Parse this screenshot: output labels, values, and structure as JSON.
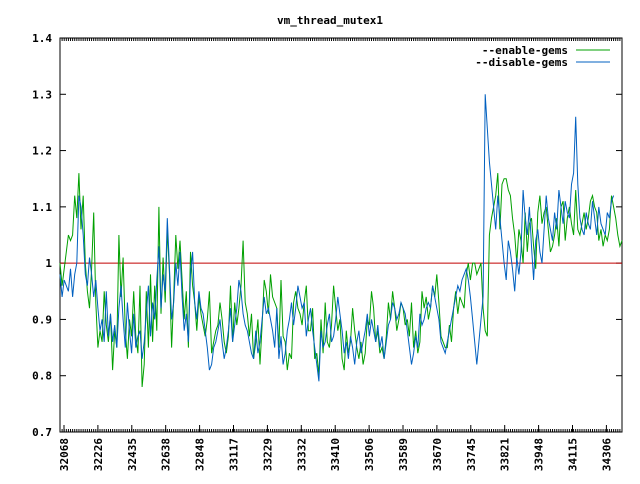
{
  "chart_data": {
    "type": "line",
    "title": "vm_thread_mutex1",
    "xlabel": "",
    "ylabel": "",
    "ylim": [
      0.7,
      1.4
    ],
    "yticks": [
      "0.7",
      "0.8",
      "0.9",
      "1",
      "1.1",
      "1.2",
      "1.3",
      "1.4"
    ],
    "xtick_labels": [
      "32068",
      "32226",
      "32435",
      "32638",
      "32848",
      "33117",
      "33229",
      "33332",
      "33410",
      "33506",
      "33589",
      "33670",
      "33745",
      "33821",
      "33948",
      "34115",
      "34306"
    ],
    "reference_line": 1.0,
    "legend_position": "top-right",
    "colors": {
      "enable": "#00a000",
      "disable": "#0060c0",
      "reference": "#c00000"
    },
    "series": [
      {
        "name": "--enable-gems",
        "values": [
          1.0,
          0.96,
          0.99,
          1.02,
          1.05,
          1.04,
          1.05,
          1.12,
          1.08,
          1.16,
          1.06,
          1.12,
          1.0,
          0.95,
          0.92,
          0.99,
          1.09,
          0.93,
          0.85,
          0.88,
          0.86,
          0.95,
          0.89,
          0.86,
          0.91,
          0.81,
          0.88,
          0.85,
          1.05,
          0.94,
          1.01,
          0.88,
          0.83,
          0.9,
          0.87,
          0.95,
          0.87,
          0.84,
          0.96,
          0.78,
          0.82,
          0.95,
          0.85,
          0.98,
          0.86,
          0.96,
          0.88,
          1.1,
          0.91,
          1.01,
          0.93,
          1.06,
          0.98,
          0.85,
          0.94,
          1.05,
          0.99,
          1.04,
          0.97,
          0.9,
          0.95,
          0.85,
          1.02,
          0.96,
          0.93,
          0.88,
          0.94,
          0.91,
          0.89,
          0.87,
          0.9,
          0.95,
          0.84,
          0.86,
          0.88,
          0.89,
          0.93,
          0.9,
          0.86,
          0.84,
          0.87,
          0.96,
          0.86,
          0.93,
          0.89,
          0.92,
          0.96,
          1.04,
          0.93,
          0.91,
          0.87,
          0.91,
          0.83,
          0.86,
          0.9,
          0.82,
          0.89,
          0.97,
          0.95,
          0.91,
          0.98,
          0.94,
          0.93,
          0.92,
          0.85,
          0.97,
          0.87,
          0.86,
          0.81,
          0.84,
          0.83,
          0.93,
          0.95,
          0.92,
          0.91,
          0.89,
          0.93,
          0.96,
          0.88,
          0.88,
          0.92,
          0.83,
          0.84,
          0.8,
          0.9,
          0.84,
          0.93,
          0.86,
          0.85,
          0.89,
          0.96,
          0.92,
          0.88,
          0.9,
          0.83,
          0.81,
          0.88,
          0.84,
          0.86,
          0.92,
          0.88,
          0.85,
          0.83,
          0.86,
          0.82,
          0.84,
          0.9,
          0.89,
          0.95,
          0.92,
          0.86,
          0.88,
          0.84,
          0.85,
          0.83,
          0.87,
          0.93,
          0.9,
          0.95,
          0.92,
          0.88,
          0.9,
          0.93,
          0.92,
          0.89,
          0.9,
          0.87,
          0.93,
          0.85,
          0.88,
          0.84,
          0.86,
          0.95,
          0.92,
          0.94,
          0.9,
          0.92,
          0.96,
          0.94,
          0.98,
          0.93,
          0.87,
          0.86,
          0.85,
          0.85,
          0.89,
          0.86,
          0.92,
          0.95,
          0.91,
          0.94,
          0.93,
          0.92,
          0.98,
          1.0,
          0.97,
          1.0,
          1.0,
          0.98,
          0.99,
          1.0,
          0.92,
          0.88,
          0.87,
          1.05,
          1.08,
          1.1,
          1.12,
          1.16,
          1.06,
          1.14,
          1.15,
          1.15,
          1.13,
          1.12,
          1.08,
          1.05,
          1.0,
          1.06,
          1.04,
          1.0,
          1.09,
          1.02,
          1.07,
          1.08,
          1.03,
          0.99,
          1.09,
          1.12,
          1.07,
          1.09,
          1.1,
          1.06,
          1.02,
          1.03,
          1.05,
          1.08,
          1.03,
          1.1,
          1.11,
          1.04,
          1.08,
          1.1,
          1.07,
          1.05,
          1.13,
          1.06,
          1.05,
          1.07,
          1.09,
          1.06,
          1.08,
          1.11,
          1.12,
          1.1,
          1.09,
          1.04,
          1.06,
          1.03,
          1.05,
          1.04,
          1.06,
          1.12,
          1.1,
          1.08,
          1.05,
          1.03,
          1.04
        ]
      },
      {
        "name": "--disable-gems",
        "values": [
          0.98,
          0.94,
          0.97,
          0.96,
          0.95,
          0.99,
          0.94,
          0.98,
          1.0,
          1.12,
          1.1,
          1.05,
          0.98,
          0.96,
          1.01,
          0.98,
          0.94,
          0.97,
          0.92,
          0.88,
          0.9,
          0.86,
          0.95,
          0.87,
          0.91,
          0.86,
          0.89,
          0.85,
          0.92,
          0.96,
          0.9,
          0.85,
          0.93,
          0.88,
          0.84,
          0.91,
          0.85,
          0.87,
          0.88,
          0.83,
          0.86,
          0.91,
          0.96,
          0.87,
          0.93,
          0.9,
          0.97,
          1.03,
          0.92,
          0.98,
          0.95,
          1.08,
          0.99,
          0.9,
          0.93,
          1.0,
          0.96,
          1.02,
          0.94,
          0.88,
          0.91,
          0.86,
          0.98,
          1.02,
          0.93,
          0.9,
          0.95,
          0.92,
          0.91,
          0.88,
          0.85,
          0.81,
          0.82,
          0.85,
          0.86,
          0.88,
          0.9,
          0.86,
          0.83,
          0.85,
          0.88,
          0.92,
          0.86,
          0.89,
          0.92,
          0.97,
          0.95,
          0.91,
          0.89,
          0.88,
          0.86,
          0.84,
          0.83,
          0.88,
          0.84,
          0.86,
          0.9,
          0.94,
          0.91,
          0.92,
          0.9,
          0.88,
          0.85,
          0.92,
          0.83,
          0.87,
          0.82,
          0.84,
          0.88,
          0.9,
          0.93,
          0.89,
          0.92,
          0.96,
          0.94,
          0.92,
          0.93,
          0.87,
          0.9,
          0.92,
          0.88,
          0.85,
          0.82,
          0.79,
          0.88,
          0.85,
          0.86,
          0.89,
          0.91,
          0.86,
          0.87,
          0.9,
          0.94,
          0.91,
          0.88,
          0.84,
          0.86,
          0.83,
          0.87,
          0.85,
          0.82,
          0.86,
          0.88,
          0.84,
          0.86,
          0.88,
          0.91,
          0.87,
          0.9,
          0.88,
          0.86,
          0.89,
          0.85,
          0.87,
          0.83,
          0.86,
          0.89,
          0.9,
          0.93,
          0.92,
          0.9,
          0.91,
          0.93,
          0.92,
          0.91,
          0.88,
          0.85,
          0.82,
          0.84,
          0.87,
          0.85,
          0.91,
          0.89,
          0.9,
          0.92,
          0.93,
          0.92,
          0.96,
          0.94,
          0.92,
          0.9,
          0.86,
          0.85,
          0.84,
          0.86,
          0.88,
          0.9,
          0.92,
          0.94,
          0.96,
          0.95,
          0.97,
          0.98,
          0.99,
          0.97,
          0.94,
          0.9,
          0.86,
          0.82,
          0.86,
          0.9,
          0.94,
          1.3,
          1.24,
          1.18,
          1.14,
          1.1,
          1.06,
          1.12,
          1.08,
          1.04,
          1.0,
          0.97,
          1.04,
          1.02,
          0.99,
          0.95,
          1.01,
          0.98,
          1.02,
          1.13,
          1.08,
          1.05,
          1.1,
          1.03,
          0.97,
          1.04,
          1.06,
          1.02,
          1.0,
          1.06,
          1.12,
          1.08,
          1.06,
          1.04,
          1.09,
          1.06,
          1.13,
          1.1,
          1.07,
          1.11,
          1.09,
          1.08,
          1.14,
          1.16,
          1.26,
          1.14,
          1.08,
          1.06,
          1.05,
          1.09,
          1.07,
          1.06,
          1.11,
          1.08,
          1.05,
          1.1,
          1.07,
          1.06,
          1.05,
          1.09,
          1.08,
          1.11,
          1.12
        ]
      }
    ]
  }
}
